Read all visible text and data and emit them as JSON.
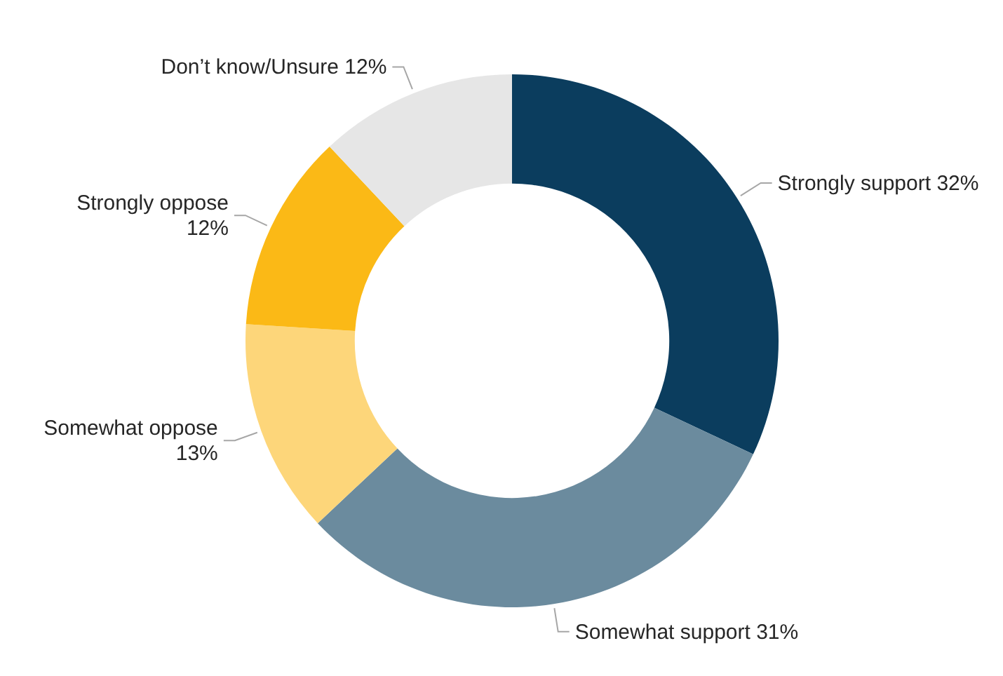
{
  "chart_data": {
    "type": "donut",
    "categories": [
      "Strongly support",
      "Somewhat support",
      "Somewhat oppose",
      "Strongly oppose",
      "Don’t know/Unsure"
    ],
    "values": [
      32,
      31,
      13,
      12,
      12
    ],
    "value_labels": [
      "32%",
      "31%",
      "13%",
      "12%",
      "12%"
    ],
    "colors": [
      "#0b3d5e",
      "#6b8b9e",
      "#fdd67a",
      "#fbb916",
      "#e6e6e6"
    ],
    "legend": false
  }
}
